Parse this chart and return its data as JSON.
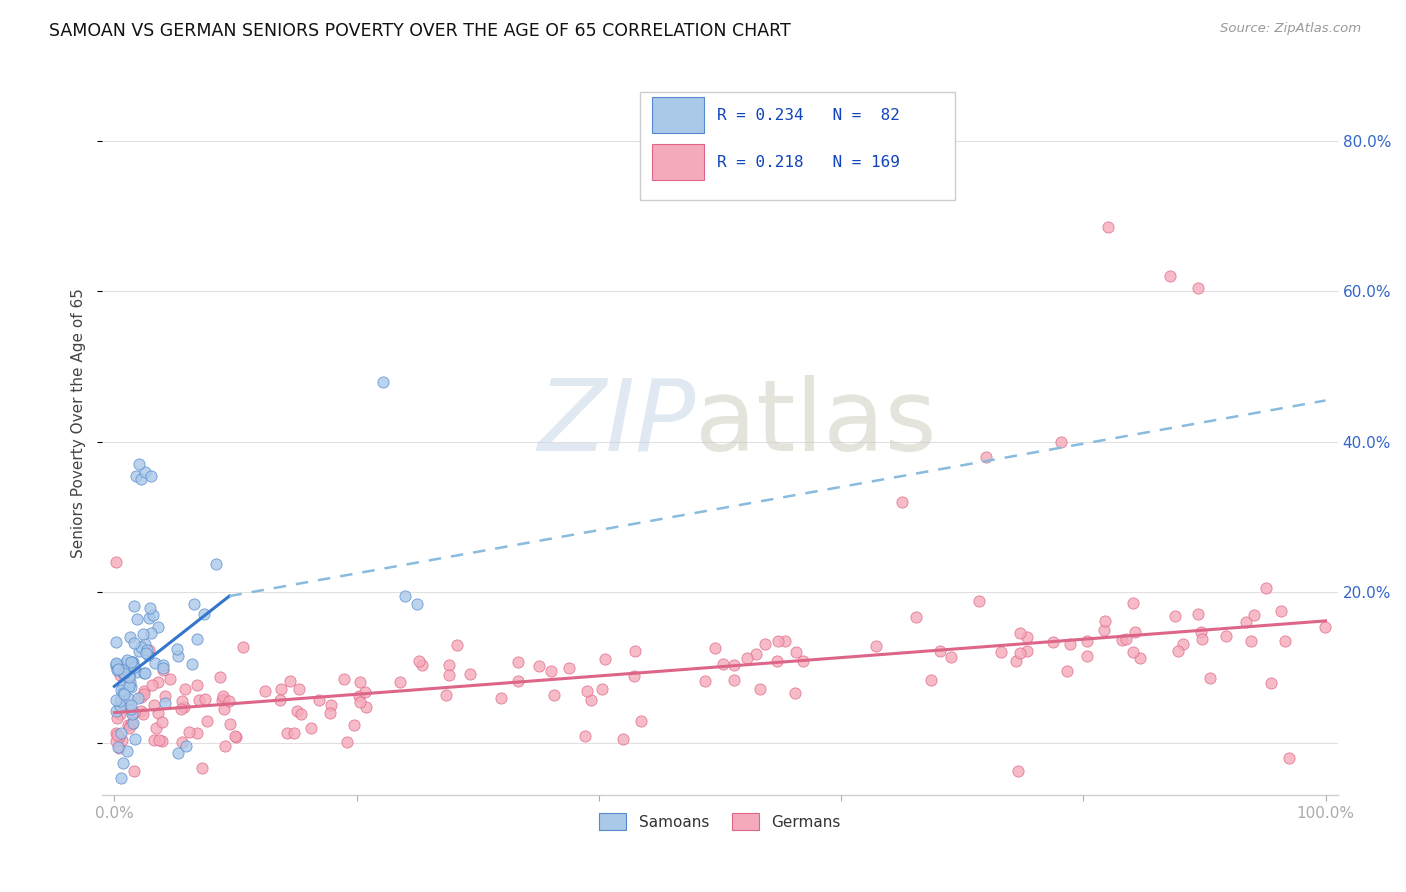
{
  "title": "SAMOAN VS GERMAN SENIORS POVERTY OVER THE AGE OF 65 CORRELATION CHART",
  "source": "Source: ZipAtlas.com",
  "ylabel": "Seniors Poverty Over the Age of 65",
  "r_samoan": 0.234,
  "n_samoan": 82,
  "r_german": 0.218,
  "n_german": 169,
  "samoan_color": "#aac8e8",
  "german_color": "#f5aabb",
  "samoan_edge": "#5588cc",
  "german_edge": "#dd6688",
  "trendline_samoan_solid": "#3377cc",
  "trendline_german_solid": "#dd6688",
  "trendline_dashed": "#88bbdd",
  "r_n_color": "#1144bb",
  "background_color": "#ffffff",
  "trendline_samoan_start_x": 0.0,
  "trendline_samoan_start_y": 0.075,
  "trendline_samoan_solid_end_x": 0.095,
  "trendline_samoan_solid_end_y": 0.195,
  "trendline_samoan_dash_end_x": 1.0,
  "trendline_samoan_dash_end_y": 0.455,
  "trendline_german_start_x": 0.0,
  "trendline_german_start_y": 0.04,
  "trendline_german_end_x": 1.0,
  "trendline_german_end_y": 0.162,
  "xlim_min": -0.01,
  "xlim_max": 1.01,
  "ylim_min": -0.07,
  "ylim_max": 0.92,
  "ytick_vals": [
    0.0,
    0.2,
    0.4,
    0.6,
    0.8
  ],
  "ytick_labels": [
    "",
    "20.0%",
    "40.0%",
    "60.0%",
    "80.0%"
  ]
}
